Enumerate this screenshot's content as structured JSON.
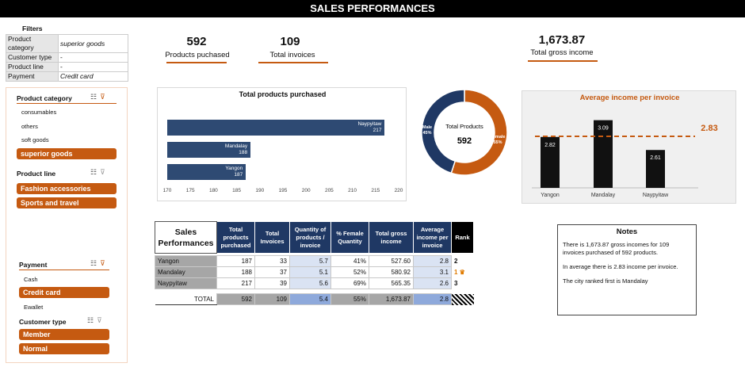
{
  "title": "SALES PERFORMANCES",
  "filters": {
    "heading": "Filters",
    "rows": [
      {
        "key": "Product category",
        "value": "superior goods"
      },
      {
        "key": "Customer type",
        "value": "-"
      },
      {
        "key": "Product line",
        "value": "-"
      },
      {
        "key": "Payment",
        "value": "Credit card"
      }
    ]
  },
  "kpis": {
    "products": {
      "value": "592",
      "label": "Products puchased"
    },
    "invoices": {
      "value": "109",
      "label": "Total invoices"
    },
    "gross": {
      "value": "1,673.87",
      "label": "Total gross income"
    }
  },
  "slicers": {
    "product_category": {
      "label": "Product category",
      "items": [
        "consumables",
        "others",
        "soft goods"
      ],
      "selected": "superior goods"
    },
    "product_line": {
      "label": "Product line",
      "selected": [
        "Fashion accessories",
        "Sports and travel"
      ]
    },
    "payment": {
      "label": "Payment",
      "items": [
        "Cash",
        "Ewallet"
      ],
      "selected": "Credit card"
    },
    "customer_type": {
      "label": "Customer type",
      "selected": [
        "Member",
        "Normal"
      ]
    },
    "icons": [
      "multi-select-icon",
      "clear-filter-icon"
    ],
    "accent": "#c55a11"
  },
  "chart_data": [
    {
      "type": "bar",
      "orientation": "horizontal",
      "title": "Total products purchased",
      "categories": [
        "Naypyitaw",
        "Mandalay",
        "Yangon"
      ],
      "values": [
        217,
        188,
        187
      ],
      "xlim": [
        170,
        220
      ],
      "xticks": [
        "170",
        "175",
        "180",
        "185",
        "190",
        "195",
        "200",
        "205",
        "210",
        "215",
        "220"
      ],
      "color": "#2e4a73"
    },
    {
      "type": "pie",
      "variant": "donut",
      "center_label": "Total Products",
      "center_value": "592",
      "slices": [
        {
          "name": "Male",
          "value": 45,
          "label": "45%",
          "color": "#1f3864"
        },
        {
          "name": "Female",
          "value": 55,
          "label": "55%",
          "color": "#c55a11"
        }
      ]
    },
    {
      "type": "bar",
      "title": "Average income per invoice",
      "categories": [
        "Yangon",
        "Mandalay",
        "Naypyitaw"
      ],
      "values": [
        2.82,
        3.09,
        2.61
      ],
      "value_labels": [
        "2.82",
        "3.09",
        "2.61"
      ],
      "reference_line": {
        "value": 2.83,
        "label": "2.83",
        "style": "dashed",
        "color": "#c55a11"
      },
      "ylim": [
        2.0,
        3.2
      ],
      "color": "#111111"
    }
  ],
  "table": {
    "header_title": "Sales Performances",
    "columns": [
      "Total products purchased",
      "Total Invoices",
      "Quantity of products / invoice",
      "% Female Quantity",
      "Total gross income",
      "Average income per invoice",
      "Rank"
    ],
    "rows": [
      {
        "city": "Yangon",
        "cells": [
          "187",
          "33",
          "5.7",
          "41%",
          "527.60",
          "2.8"
        ],
        "rank": "2"
      },
      {
        "city": "Mandalay",
        "cells": [
          "188",
          "37",
          "5.1",
          "52%",
          "580.92",
          "3.1"
        ],
        "rank": "1"
      },
      {
        "city": "Naypyitaw",
        "cells": [
          "217",
          "39",
          "5.6",
          "69%",
          "565.35",
          "2.6"
        ],
        "rank": "3"
      }
    ],
    "total": {
      "label": "TOTAL",
      "cells": [
        "592",
        "109",
        "5.4",
        "55%",
        "1,673.87",
        "2.8"
      ]
    }
  },
  "notes": {
    "title": "Notes",
    "p1": "There is  1,673.87  gross incomes for 109 invoices purchased of  592  products.",
    "p2": "In average there is  2.83  income per invoice.",
    "p3": "The city ranked first is Mandalay"
  }
}
